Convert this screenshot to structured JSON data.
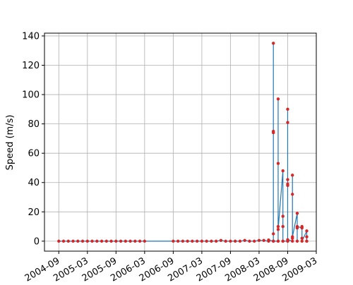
{
  "chart_data": {
    "type": "line",
    "y_label": "Speed (m/s)",
    "x": [
      "2004-09",
      "2004-10",
      "2004-11",
      "2004-12",
      "2005-01",
      "2005-02",
      "2005-03",
      "2005-04",
      "2005-05",
      "2005-06",
      "2005-07",
      "2005-08",
      "2005-09",
      "2005-10",
      "2005-11",
      "2005-12",
      "2006-01",
      "2006-02",
      "2006-03",
      "2006-09",
      "2006-10",
      "2006-11",
      "2006-12",
      "2007-01",
      "2007-02",
      "2007-03",
      "2007-04",
      "2007-05",
      "2007-06",
      "2007-07",
      "2007-08",
      "2007-09",
      "2007-10",
      "2007-11",
      "2007-12",
      "2008-01",
      "2008-02",
      "2008-03",
      "2008-04",
      "2008-05",
      "2008-05",
      "2008-06",
      "2008-06",
      "2008-06",
      "2008-06",
      "2008-06",
      "2008-06",
      "2008-06",
      "2008-07",
      "2008-07",
      "2008-07",
      "2008-07",
      "2008-07",
      "2008-07",
      "2008-08",
      "2008-08",
      "2008-08",
      "2008-08",
      "2008-08",
      "2008-09",
      "2008-09",
      "2008-09",
      "2008-09",
      "2008-09",
      "2008-09",
      "2008-09",
      "2008-09",
      "2008-10",
      "2008-10",
      "2008-10",
      "2008-10",
      "2008-10",
      "2008-11",
      "2008-11",
      "2008-11",
      "2008-11",
      "2008-12",
      "2008-12",
      "2008-12",
      "2008-12",
      "2009-01",
      "2009-01",
      "2009-01",
      "2009-01"
    ],
    "series": [
      {
        "name": "speed",
        "color": "#1f77b4",
        "marker_color": "#d62728",
        "values": [
          0,
          0,
          0,
          0,
          0,
          0,
          0,
          0,
          0,
          0,
          0,
          0,
          0,
          0,
          0,
          0,
          0,
          0,
          0,
          0,
          0,
          0,
          0,
          0,
          0,
          0,
          0,
          0,
          0,
          0.5,
          0,
          0,
          0,
          0,
          0.5,
          0,
          0,
          0.5,
          0.5,
          0,
          0.8,
          0,
          75,
          74,
          0,
          135,
          5,
          0,
          0,
          53,
          97,
          10,
          0,
          8,
          48,
          0,
          17,
          10,
          0,
          0,
          38,
          90,
          39,
          0,
          81,
          42,
          1,
          0,
          2,
          45,
          32,
          3,
          19,
          9,
          0,
          10,
          9,
          10,
          2,
          0,
          7,
          0,
          3,
          0
        ]
      }
    ],
    "xlim": [
      "2004-06",
      "2009-03"
    ],
    "xticks": [
      "2004-09",
      "2005-03",
      "2005-09",
      "2006-03",
      "2006-09",
      "2007-03",
      "2007-09",
      "2008-03",
      "2008-09",
      "2009-03"
    ],
    "ylim": [
      -6.8,
      141.9
    ],
    "yticks": [
      0,
      20,
      40,
      60,
      80,
      100,
      120,
      140
    ],
    "grid": true
  }
}
